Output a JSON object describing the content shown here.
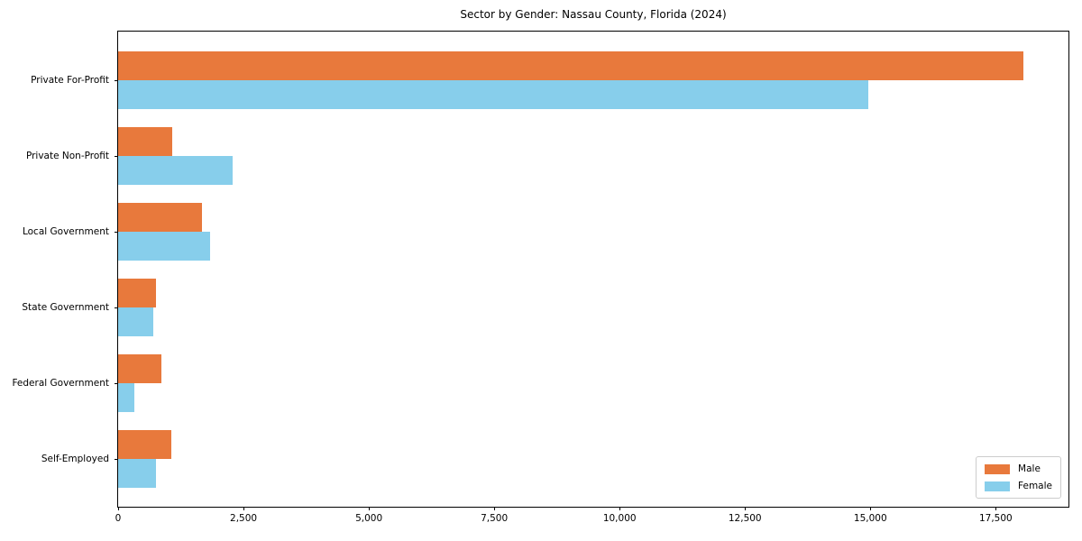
{
  "chart_data": {
    "type": "bar",
    "orientation": "horizontal",
    "title": "Sector by Gender: Nassau County, Florida (2024)",
    "categories": [
      "Private For-Profit",
      "Private Non-Profit",
      "Local Government",
      "State Government",
      "Federal Government",
      "Self-Employed"
    ],
    "series": [
      {
        "name": "Male",
        "color": "#e8793c",
        "values": [
          18050,
          1080,
          1680,
          750,
          870,
          1060
        ]
      },
      {
        "name": "Female",
        "color": "#87ceeb",
        "values": [
          14950,
          2280,
          1840,
          700,
          325,
          750
        ]
      }
    ],
    "xlabel": "",
    "ylabel": "",
    "xlim": [
      0,
      18950
    ],
    "xticks": [
      0,
      2500,
      5000,
      7500,
      10000,
      12500,
      15000,
      17500
    ],
    "xtick_labels": [
      "0",
      "2,500",
      "5,000",
      "7,500",
      "10,000",
      "12,500",
      "15,000",
      "17,500"
    ],
    "grid": false,
    "legend_position": "lower right",
    "background_color": "#ffffff",
    "spine_color": "#000000"
  }
}
